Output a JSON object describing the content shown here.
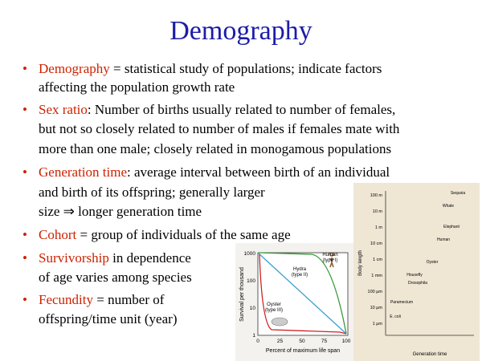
{
  "title": "Demography",
  "bullets": [
    {
      "term": "Demography",
      "lines": [
        " = statistical study of populations; indicate factors",
        "affecting the population growth rate"
      ]
    },
    {
      "term": "Sex ratio",
      "lines": [
        ": Number of births usually related to number of females,",
        "but not so closely related to number of males if females mate with",
        "more than one male; closely related in monogamous populations"
      ]
    },
    {
      "term": "Generation time",
      "lines": [
        ": average interval between birth of an individual",
        "and birth of its offspring; generally larger",
        "size ⇒ longer generation time"
      ]
    },
    {
      "term": "Cohort",
      "lines": [
        " = group of individuals of the same age"
      ]
    },
    {
      "term": "Survivorship",
      "lines": [
        " in dependence",
        "of age varies among species"
      ]
    },
    {
      "term": "Fecundity",
      "lines": [
        " = number of",
        "offspring/time unit (year)"
      ]
    }
  ],
  "survivorship_figure": {
    "y_label": "Survival per thousand",
    "x_label": "Percent of maximum life span",
    "yticks": [
      "1000",
      "100",
      "10",
      "1"
    ],
    "xticks": [
      "0",
      "25",
      "50",
      "75",
      "100"
    ],
    "curve_labels": [
      "Human\n(type I)",
      "Hydra\n(type II)",
      "Oyster\n(type III)"
    ]
  },
  "size_figure": {
    "y_label": "Body length",
    "x_label": "Generation time",
    "yticks": [
      "100 m",
      "10 m",
      "1 m",
      "10 cm",
      "1 cm",
      "1 mm",
      "100 µm",
      "10 µm",
      "1 µm"
    ],
    "species": [
      "Sequoia",
      "Whale",
      "Elephant",
      "Human",
      "Oyster",
      "Housefly",
      "Drosophila",
      "Paramecium",
      "E. coli"
    ]
  }
}
